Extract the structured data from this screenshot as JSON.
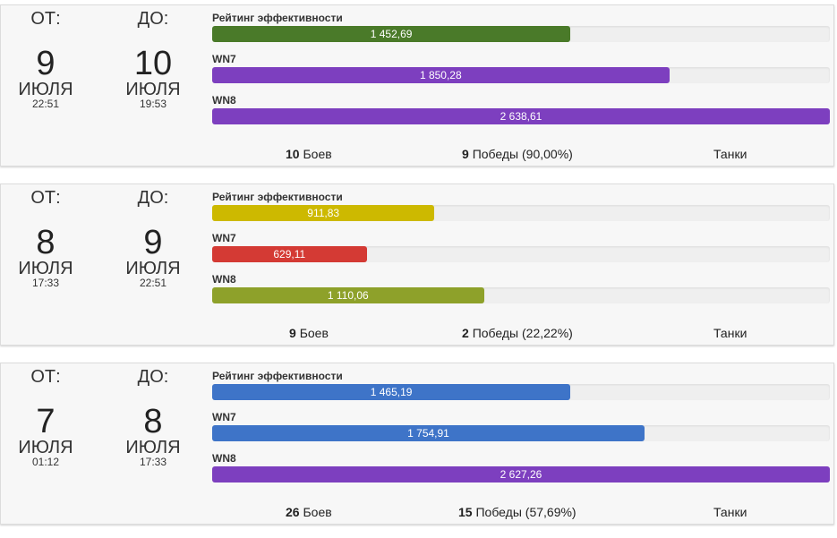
{
  "labels": {
    "from": "ОТ:",
    "to": "ДО:",
    "battles_suffix": "Боев",
    "wins_suffix": "Победы",
    "tanks": "Танки"
  },
  "cards": [
    {
      "from": {
        "day": "9",
        "month": "ИЮЛЯ",
        "time": "22:51"
      },
      "to": {
        "day": "10",
        "month": "ИЮЛЯ",
        "time": "19:53"
      },
      "metrics": [
        {
          "label": "Рейтинг эффективности",
          "value": "1 452,69",
          "fraction": 0.58,
          "color": "#4a7a29"
        },
        {
          "label": "WN7",
          "value": "1 850,28",
          "fraction": 0.74,
          "color": "#7d3fbf"
        },
        {
          "label": "WN8",
          "value": "2 638,61",
          "fraction": 1.0,
          "color": "#7d3fbf"
        }
      ],
      "battles": "10",
      "wins": "9",
      "win_pct": "(90,00%)"
    },
    {
      "from": {
        "day": "8",
        "month": "ИЮЛЯ",
        "time": "17:33"
      },
      "to": {
        "day": "9",
        "month": "ИЮЛЯ",
        "time": "22:51"
      },
      "metrics": [
        {
          "label": "Рейтинг эффективности",
          "value": "911,83",
          "fraction": 0.36,
          "color": "#cdb900"
        },
        {
          "label": "WN7",
          "value": "629,11",
          "fraction": 0.25,
          "color": "#d43a34"
        },
        {
          "label": "WN8",
          "value": "1 110,06",
          "fraction": 0.44,
          "color": "#8ea12a"
        }
      ],
      "battles": "9",
      "wins": "2",
      "win_pct": "(22,22%)"
    },
    {
      "from": {
        "day": "7",
        "month": "ИЮЛЯ",
        "time": "01:12"
      },
      "to": {
        "day": "8",
        "month": "ИЮЛЯ",
        "time": "17:33"
      },
      "metrics": [
        {
          "label": "Рейтинг эффективности",
          "value": "1 465,19",
          "fraction": 0.58,
          "color": "#3e74c8"
        },
        {
          "label": "WN7",
          "value": "1 754,91",
          "fraction": 0.7,
          "color": "#3e74c8"
        },
        {
          "label": "WN8",
          "value": "2 627,26",
          "fraction": 1.0,
          "color": "#7d3fbf"
        }
      ],
      "battles": "26",
      "wins": "15",
      "win_pct": "(57,69%)"
    }
  ]
}
